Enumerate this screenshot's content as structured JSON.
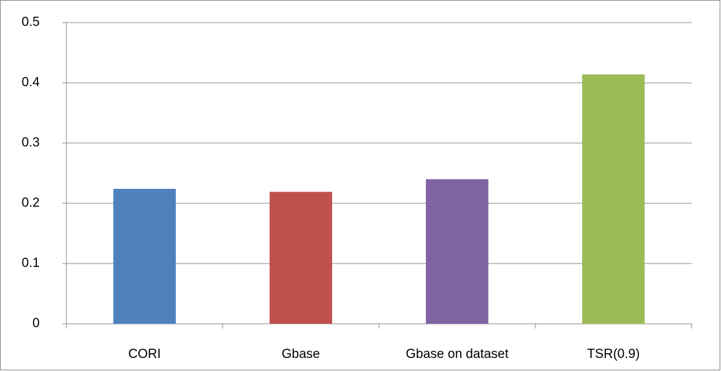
{
  "chart_data": {
    "type": "bar",
    "categories": [
      "CORI",
      "Gbase",
      "Gbase on dataset",
      "TSR(0.9)"
    ],
    "values": [
      0.224,
      0.219,
      0.24,
      0.414
    ],
    "colors": [
      "#4f81bd",
      "#c0504d",
      "#8064a2",
      "#9bbb59"
    ],
    "ylim": [
      0,
      0.5
    ],
    "yticks": [
      0,
      0.1,
      0.2,
      0.3,
      0.4,
      0.5
    ],
    "grid": true
  }
}
